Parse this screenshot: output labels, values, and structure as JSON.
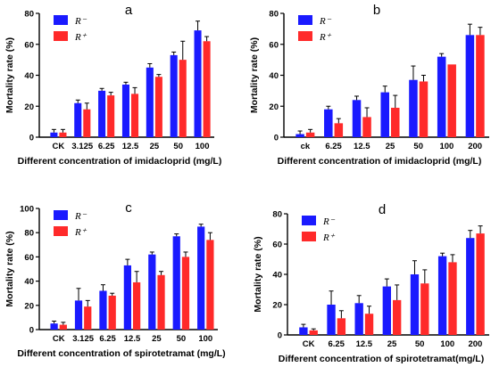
{
  "colors": {
    "r_minus": "#1a1aff",
    "r_plus": "#ff2a2a",
    "error_bar": "#000000",
    "axis": "#000000"
  },
  "chart_data": [
    {
      "type": "bar",
      "panel_label": "a",
      "categories": [
        "CK",
        "3.125",
        "6.25",
        "12.5",
        "25",
        "50",
        "100"
      ],
      "series": [
        {
          "name": "R⁻",
          "values": [
            3,
            22,
            30,
            34,
            45,
            53,
            69
          ],
          "errors": [
            2,
            2,
            1.5,
            1.5,
            2.5,
            2,
            6
          ]
        },
        {
          "name": "R⁺",
          "values": [
            3,
            18,
            27,
            28,
            39,
            50,
            62
          ],
          "errors": [
            2,
            4,
            2,
            4,
            1.5,
            12,
            3
          ]
        }
      ],
      "xlabel": "Different  concentration of imidacloprid (mg/L)",
      "ylabel": "Mortality  rate (%)",
      "ylim": [
        0,
        80
      ],
      "yticks": [
        0,
        20,
        40,
        60,
        80
      ],
      "grid": false,
      "legend": "top-left"
    },
    {
      "type": "bar",
      "panel_label": "b",
      "categories": [
        "ck",
        "6.25",
        "12.5",
        "25",
        "50",
        "100",
        "200"
      ],
      "series": [
        {
          "name": "R⁻",
          "values": [
            2,
            18,
            24,
            29,
            37,
            52,
            66
          ],
          "errors": [
            2,
            2,
            2.5,
            4,
            9,
            2,
            7
          ]
        },
        {
          "name": "R⁺",
          "values": [
            3,
            9,
            13,
            19,
            36,
            47,
            66
          ],
          "errors": [
            2,
            3,
            6,
            8,
            4,
            0,
            5
          ]
        }
      ],
      "xlabel": "Different  concentration of imidacloprid (mg/L)",
      "ylabel": "Mortality  rate (%)",
      "ylim": [
        0,
        80
      ],
      "yticks": [
        0,
        20,
        40,
        60,
        80
      ],
      "grid": false,
      "legend": "top-left"
    },
    {
      "type": "bar",
      "panel_label": "c",
      "categories": [
        "CK",
        "3.125",
        "6.25",
        "12.5",
        "25",
        "50",
        "100"
      ],
      "series": [
        {
          "name": "R⁻",
          "values": [
            5,
            24,
            32,
            53,
            62,
            77,
            85
          ],
          "errors": [
            2,
            10,
            5,
            5,
            2,
            2,
            2
          ]
        },
        {
          "name": "R⁺",
          "values": [
            4,
            19,
            28,
            39,
            45,
            60,
            74
          ],
          "errors": [
            2,
            5,
            2,
            9,
            3,
            4,
            6
          ]
        }
      ],
      "xlabel": "Different  concentration of spirotetramat (mg/L)",
      "ylabel": "Mortality  rate (%)",
      "ylim": [
        0,
        100
      ],
      "yticks": [
        0,
        20,
        40,
        60,
        80,
        100
      ],
      "grid": false,
      "legend": "top-left"
    },
    {
      "type": "bar",
      "panel_label": "d",
      "categories": [
        "CK",
        "6.25",
        "12.5",
        "25",
        "50",
        "100",
        "200"
      ],
      "series": [
        {
          "name": "R⁻",
          "values": [
            5,
            20,
            21,
            32,
            40,
            52,
            64
          ],
          "errors": [
            2,
            9,
            5,
            5,
            9,
            2,
            5
          ]
        },
        {
          "name": "R⁺",
          "values": [
            3,
            11,
            14,
            23,
            34,
            48,
            67
          ],
          "errors": [
            1,
            5,
            5,
            10,
            9,
            5,
            5
          ]
        }
      ],
      "xlabel": "Different  concentration of spirotetramat(mg/L)",
      "ylabel": "Mortality  rate (%)",
      "ylim": [
        0,
        80
      ],
      "yticks": [
        0,
        20,
        40,
        60,
        80
      ],
      "grid": false,
      "legend": "top-left"
    }
  ]
}
